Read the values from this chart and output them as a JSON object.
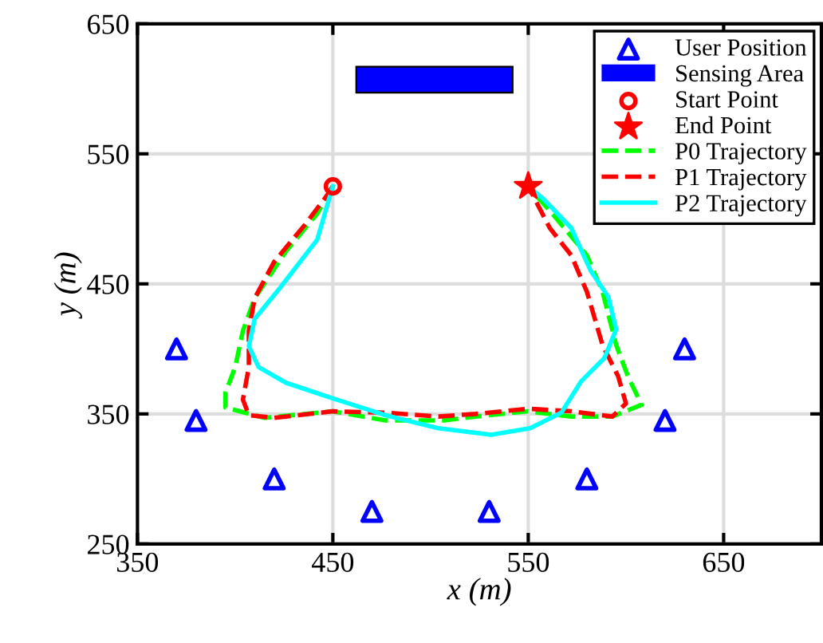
{
  "chart_data": {
    "type": "line",
    "xlabel": "x (m)",
    "ylabel": "y (m)",
    "xlim": [
      350,
      700
    ],
    "ylim": [
      250,
      650
    ],
    "xticks": [
      350,
      450,
      550,
      650
    ],
    "yticks": [
      250,
      350,
      450,
      550,
      650
    ],
    "grid": true,
    "legend": "top right",
    "series": [
      {
        "name": "User Position",
        "type": "scatter",
        "marker": "triangle",
        "color": "#0000ff",
        "x": [
          370,
          380,
          420,
          470,
          530,
          580,
          620,
          630
        ],
        "values": [
          400,
          345,
          300,
          275,
          275,
          300,
          345,
          400
        ]
      },
      {
        "name": "Sensing Area",
        "type": "bar",
        "color": "#0000ff",
        "x": [
          502
        ],
        "base": [
          597
        ],
        "values": [
          20
        ]
      },
      {
        "name": "Start Point",
        "type": "scatter",
        "marker": "circle",
        "color": "#ff0000",
        "x": [
          450
        ],
        "values": [
          525
        ]
      },
      {
        "name": "End Point",
        "type": "scatter",
        "marker": "star",
        "color": "#ff0000",
        "x": [
          550
        ],
        "values": [
          525
        ]
      },
      {
        "name": "P0 Trajectory",
        "line_style": "dashed",
        "color": "#00ff00",
        "x": [
          450,
          442,
          426,
          410,
          404,
          400,
          395,
          395,
          415,
          450,
          477,
          507,
          523,
          550,
          572,
          593,
          608,
          601,
          595,
          588,
          580,
          564,
          550
        ],
        "values": [
          525,
          504,
          475,
          439,
          414,
          386,
          366,
          355,
          347,
          352,
          345,
          345,
          348,
          352,
          348,
          348,
          357,
          379,
          403,
          444,
          472,
          501,
          525
        ]
      },
      {
        "name": "P1 Trajectory",
        "line_style": "dashed",
        "color": "#ff0000",
        "x": [
          450,
          447,
          436,
          420,
          410,
          407,
          407,
          404,
          407,
          420,
          450,
          477,
          504,
          523,
          550,
          572,
          593,
          600,
          596,
          588,
          580,
          572,
          561,
          550
        ],
        "values": [
          525,
          518,
          496,
          467,
          439,
          414,
          386,
          361,
          349,
          347,
          352,
          351,
          348,
          350,
          354,
          352,
          348,
          358,
          379,
          403,
          444,
          472,
          493,
          525
        ]
      },
      {
        "name": "P2 Trajectory",
        "line_style": "solid",
        "color": "#00ffff",
        "x": [
          450,
          449,
          442,
          423,
          410,
          407,
          412,
          426,
          450,
          477,
          504,
          531,
          551,
          567,
          577,
          589,
          595,
          591,
          582,
          572,
          558,
          550
        ],
        "values": [
          525,
          520,
          484,
          447,
          423,
          402,
          386,
          374,
          362,
          349,
          339,
          334,
          339,
          351,
          375,
          393,
          415,
          440,
          460,
          493,
          515,
          525
        ]
      }
    ]
  }
}
